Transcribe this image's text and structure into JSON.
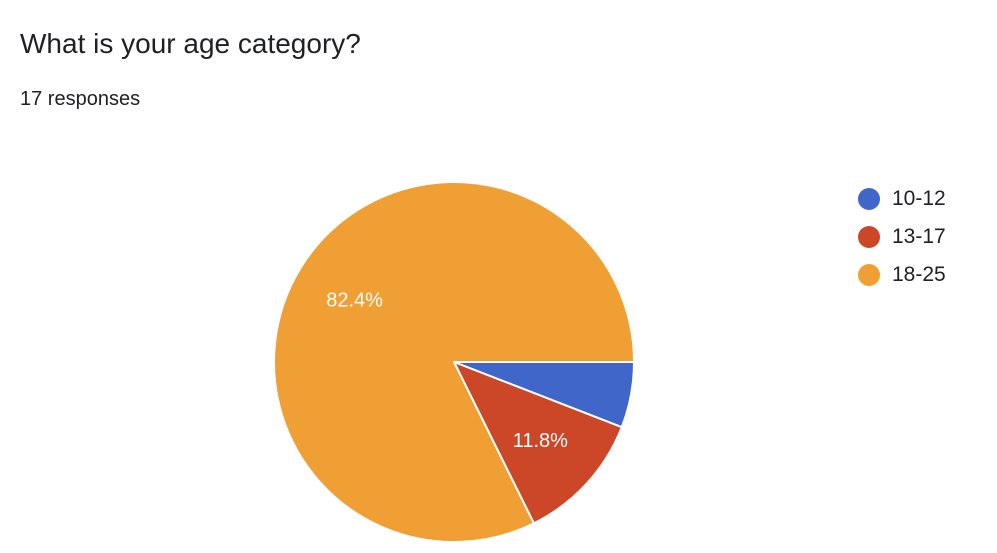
{
  "header": {
    "title": "What is your age category?",
    "responses": "17 responses"
  },
  "chart_data": {
    "type": "pie",
    "title": "What is your age category?",
    "categories": [
      "10-12",
      "13-17",
      "18-25"
    ],
    "values": [
      5.9,
      11.8,
      82.4
    ],
    "colors": [
      "#3f66c8",
      "#cc4628",
      "#f09f35"
    ],
    "data_labels": [
      "",
      "11.8%",
      "82.4%"
    ],
    "legend": "right"
  }
}
